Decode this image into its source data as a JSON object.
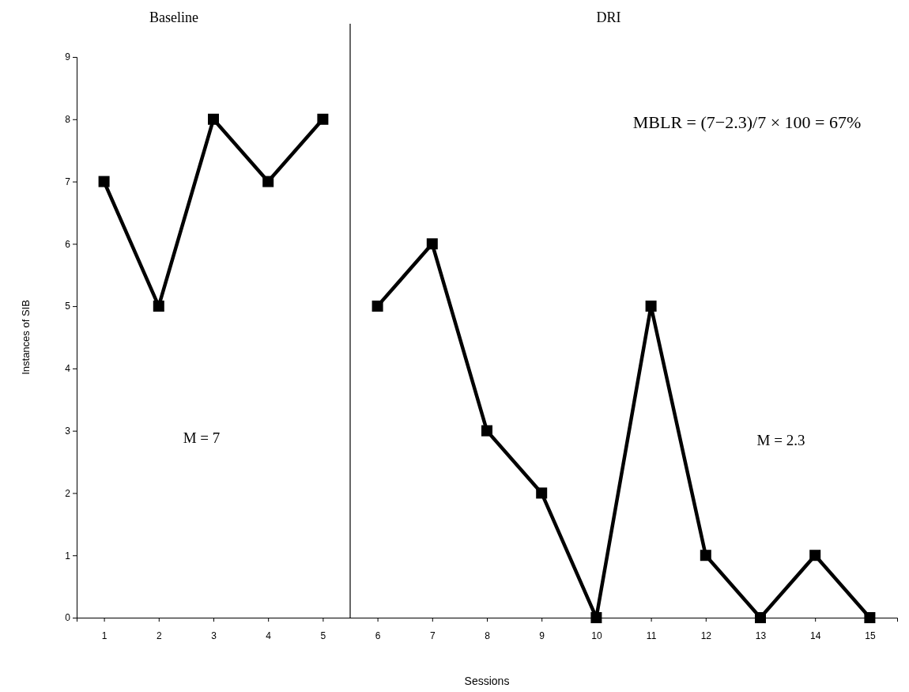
{
  "chart_data": {
    "type": "line",
    "xlabel": "Sessions",
    "ylabel": "Instances of SIB",
    "xlim": [
      0.5,
      15.5
    ],
    "xticks": [
      1,
      2,
      3,
      4,
      5,
      6,
      7,
      8,
      9,
      10,
      11,
      12,
      13,
      14,
      15
    ],
    "ylim": [
      0,
      9
    ],
    "yticks": [
      0,
      1,
      2,
      3,
      4,
      5,
      6,
      7,
      8,
      9
    ],
    "series": [
      {
        "color": "#000000",
        "x": [
          1,
          2,
          3,
          4,
          5
        ],
        "values": [
          7,
          5,
          8,
          7,
          8
        ]
      },
      {
        "color": "#000000",
        "x": [
          6,
          7,
          8,
          9,
          10,
          11,
          12,
          13,
          14,
          15
        ],
        "values": [
          5,
          6,
          3,
          2,
          0,
          5,
          1,
          0,
          1,
          0
        ]
      }
    ],
    "ref_lines": [
      {
        "axis": "x",
        "value": 5.5,
        "color": "#000000"
      }
    ],
    "annotations": [
      "Baseline",
      "DRI",
      "MBLR = (7−2.3)/7 × 100 = 67%",
      "M = 7",
      "M = 2.3"
    ],
    "marker": "square",
    "line_style": "solid",
    "grid": false
  }
}
